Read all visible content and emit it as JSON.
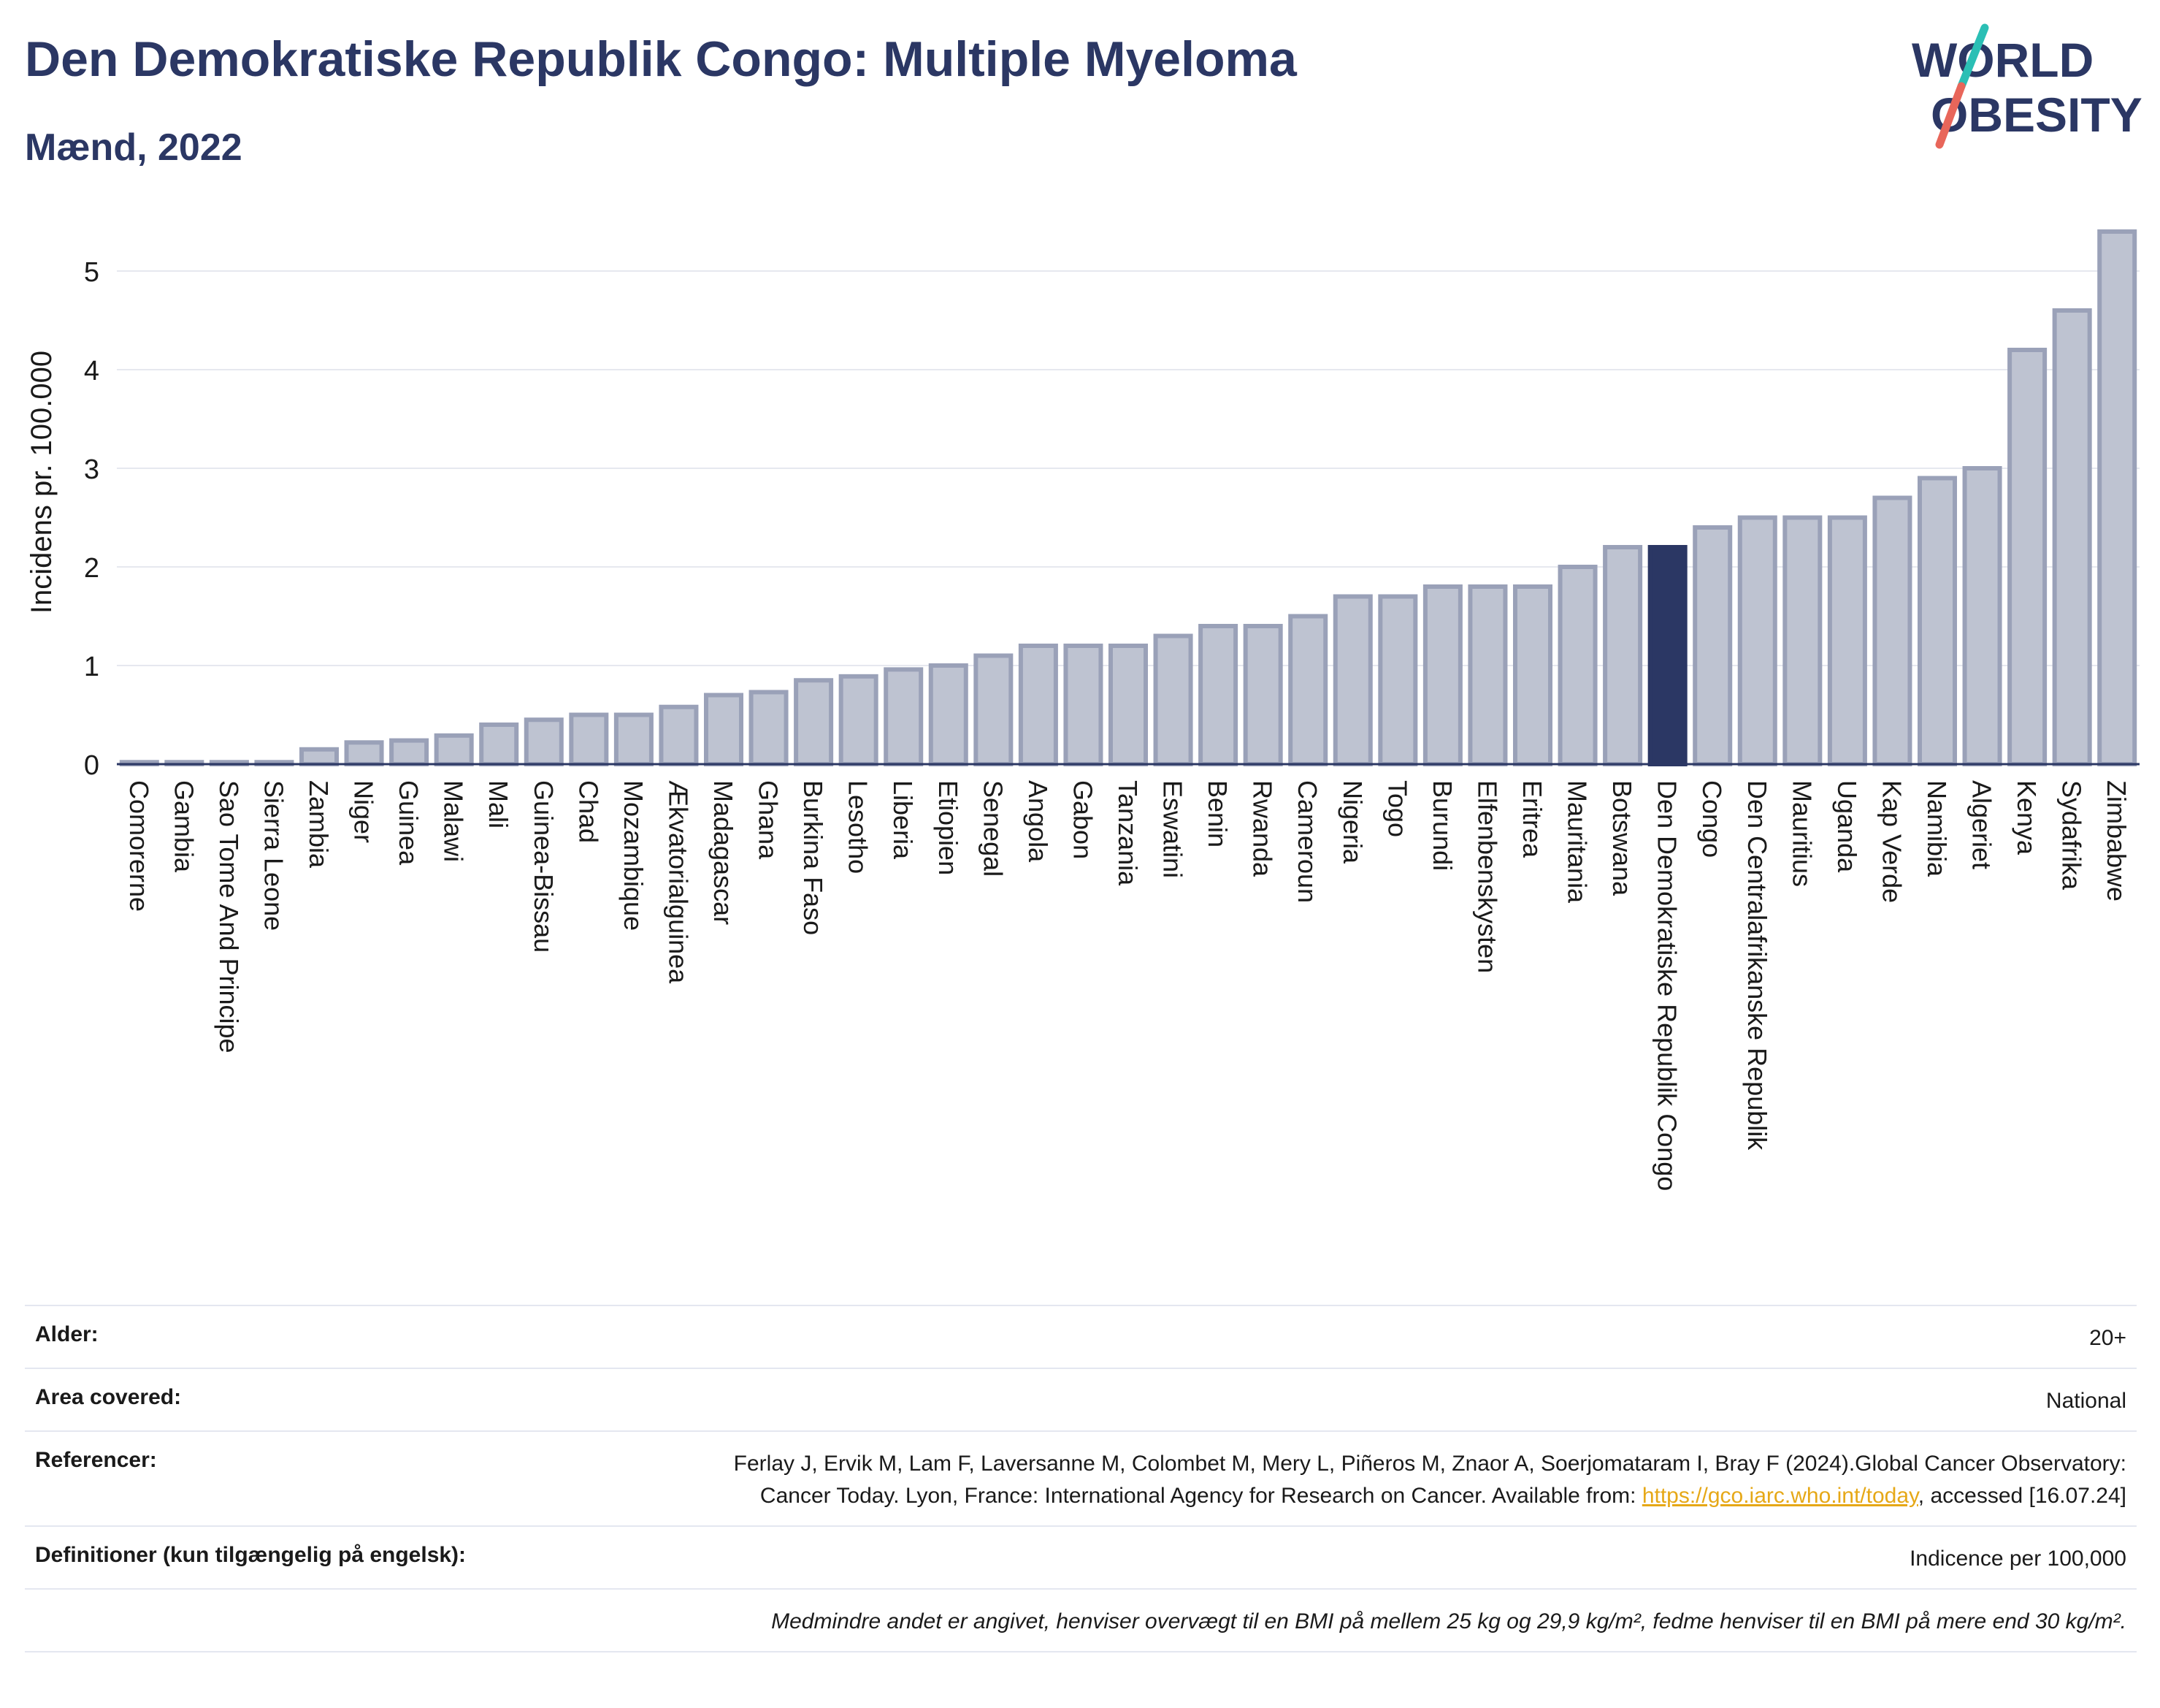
{
  "header": {
    "title": "Den Demokratiske Republik Congo: Multiple Myeloma",
    "subtitle": "Mænd, 2022"
  },
  "logo": {
    "line1": "WORLD",
    "line2": "OBESITY",
    "colors": {
      "text": "#2b3764",
      "slash_top": "#2bbfb5",
      "slash_bottom": "#e8665a"
    }
  },
  "chart_data": {
    "type": "bar",
    "ylabel": "Incidens pr. 100.000",
    "xlabel": "",
    "ylim": [
      0,
      5.5
    ],
    "yticks": [
      0,
      1,
      2,
      3,
      4,
      5
    ],
    "grid": true,
    "highlight": "Den Demokratiske Republik Congo",
    "colors": {
      "bar": "#bec3d1",
      "bar_edge": "#9aa1b8",
      "highlight": "#2b3764"
    },
    "categories": [
      "Comorerne",
      "Gambia",
      "Sao Tome And Principe",
      "Sierra Leone",
      "Zambia",
      "Niger",
      "Guinea",
      "Malawi",
      "Mali",
      "Guinea-Bissau",
      "Chad",
      "Mozambique",
      "Ækvatorialguinea",
      "Madagascar",
      "Ghana",
      "Burkina Faso",
      "Lesotho",
      "Liberia",
      "Etiopien",
      "Senegal",
      "Angola",
      "Gabon",
      "Tanzania",
      "Eswatini",
      "Benin",
      "Rwanda",
      "Cameroun",
      "Nigeria",
      "Togo",
      "Burundi",
      "Elfenbenskysten",
      "Eritrea",
      "Mauritania",
      "Botswana",
      "Den Demokratiske Republik Congo",
      "Congo",
      "Den Centralafrikanske Republik",
      "Mauritius",
      "Uganda",
      "Kap Verde",
      "Namibia",
      "Algeriet",
      "Kenya",
      "Sydafrika",
      "Zimbabwe"
    ],
    "values": [
      0.02,
      0.02,
      0.02,
      0.02,
      0.15,
      0.22,
      0.24,
      0.29,
      0.4,
      0.45,
      0.5,
      0.5,
      0.58,
      0.7,
      0.73,
      0.85,
      0.89,
      0.96,
      1.0,
      1.1,
      1.2,
      1.2,
      1.2,
      1.3,
      1.4,
      1.4,
      1.5,
      1.7,
      1.7,
      1.8,
      1.8,
      1.8,
      2.0,
      2.2,
      2.2,
      2.4,
      2.5,
      2.5,
      2.5,
      2.7,
      2.9,
      3.0,
      4.2,
      4.6,
      5.4
    ]
  },
  "info": {
    "age_label": "Alder:",
    "age_value": "20+",
    "area_label": "Area covered:",
    "area_value": "National",
    "ref_label": "Referencer:",
    "ref_text": "Ferlay J, Ervik M, Lam F, Laversanne M, Colombet M, Mery L, Piñeros M, Znaor A, Soerjomataram I, Bray F (2024).Global Cancer Observatory: Cancer Today. Lyon, France: International Agency for Research on Cancer. Available from: ",
    "ref_link": "https://gco.iarc.who.int/today",
    "ref_tail": ", accessed [16.07.24]",
    "def_label": "Definitioner (kun tilgængelig på engelsk):",
    "def_value": "Indicence per 100,000",
    "note": "Medmindre andet er angivet, henviser overvægt til en BMI på mellem 25 kg og 29,9 kg/m², fedme henviser til en BMI på mere end 30 kg/m²."
  }
}
